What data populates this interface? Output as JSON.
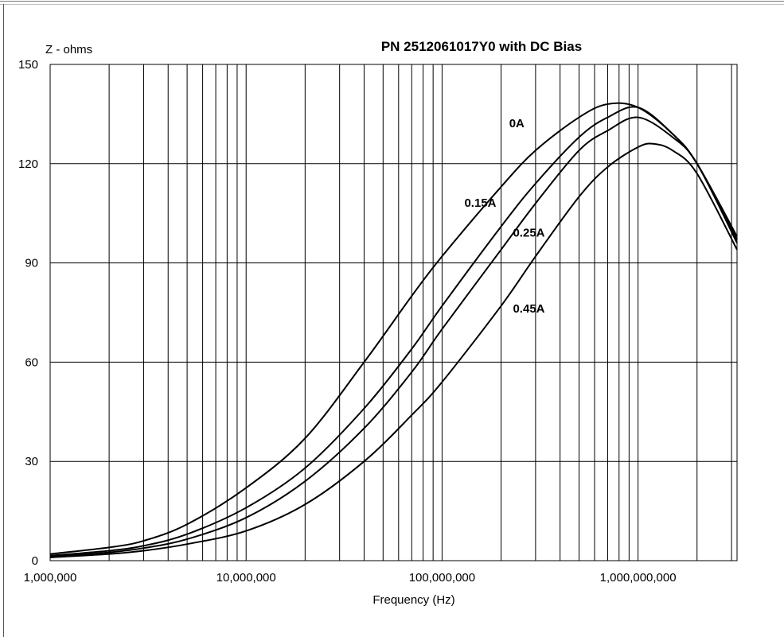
{
  "chart_data": {
    "type": "line",
    "title": "PN 2512061017Y0 with DC Bias",
    "ylabel": "Z - ohms",
    "xlabel": "Frequency (Hz)",
    "x_scale": "log",
    "xlim": [
      1000000,
      3200000000
    ],
    "ylim": [
      0,
      150
    ],
    "grid": true,
    "legend": "inline labels",
    "line_color": "#000000",
    "y_ticks": [
      0,
      30,
      60,
      90,
      120,
      150
    ],
    "y_tick_labels": [
      "0",
      "30",
      "60",
      "90",
      "120",
      "150"
    ],
    "x_ticks": [
      1000000,
      10000000,
      100000000,
      1000000000
    ],
    "x_tick_labels": [
      "1,000,000",
      "10,000,000",
      "100,000,000",
      "1,000,000,000"
    ],
    "series": [
      {
        "name": "0A",
        "x": [
          1000000,
          2000000,
          3000000,
          5000000,
          10000000,
          20000000,
          40000000,
          70000000,
          100000000,
          200000000,
          300000000,
          500000000,
          700000000,
          1000000000,
          1500000000,
          2000000000,
          3200000000
        ],
        "y": [
          2,
          4,
          6,
          11,
          22,
          37,
          60,
          80,
          92,
          113,
          124,
          134,
          138,
          137,
          129,
          120,
          98
        ]
      },
      {
        "name": "0.15A",
        "x": [
          1000000,
          2000000,
          3000000,
          5000000,
          10000000,
          20000000,
          40000000,
          70000000,
          100000000,
          200000000,
          300000000,
          500000000,
          700000000,
          1000000000,
          1500000000,
          2000000000,
          3200000000
        ],
        "y": [
          1.5,
          3,
          4.5,
          8,
          16,
          28,
          46,
          64,
          77,
          101,
          114,
          128,
          134,
          137,
          129,
          120,
          97
        ]
      },
      {
        "name": "0.25A",
        "x": [
          1000000,
          2000000,
          3000000,
          5000000,
          10000000,
          20000000,
          40000000,
          70000000,
          100000000,
          200000000,
          300000000,
          500000000,
          700000000,
          1000000000,
          1500000000,
          2000000000,
          3200000000
        ],
        "y": [
          1.2,
          2.5,
          3.8,
          6.5,
          13,
          24,
          40,
          57,
          70,
          94,
          108,
          124,
          130,
          134,
          128,
          120,
          96
        ]
      },
      {
        "name": "0.45A",
        "x": [
          1000000,
          2000000,
          3000000,
          5000000,
          10000000,
          20000000,
          40000000,
          70000000,
          100000000,
          200000000,
          300000000,
          500000000,
          700000000,
          1000000000,
          1200000000,
          1500000000,
          2000000000,
          3200000000
        ],
        "y": [
          1,
          2,
          3,
          5,
          9,
          17,
          30,
          44,
          54,
          77,
          92,
          110,
          119,
          125,
          126,
          124,
          117,
          94
        ]
      }
    ],
    "annotations": [
      {
        "text": "0A",
        "x": 220000000,
        "y": 131
      },
      {
        "text": "0.15A",
        "x": 130000000,
        "y": 107
      },
      {
        "text": "0.25A",
        "x": 230000000,
        "y": 98
      },
      {
        "text": "0.45A",
        "x": 230000000,
        "y": 75
      }
    ]
  }
}
